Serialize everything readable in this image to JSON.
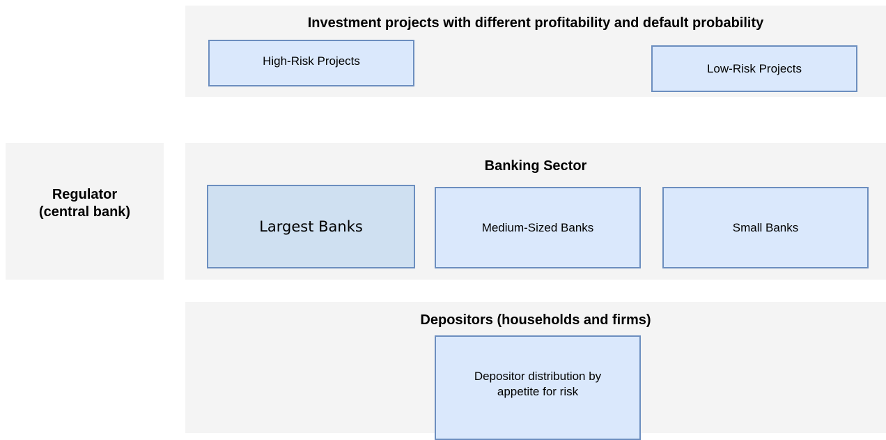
{
  "panels": [
    {
      "title": "Investment projects with different profitability and default probability",
      "boxes": [
        "High-Risk Projects",
        "Low-Risk Projects"
      ]
    },
    {
      "title": "Banking Sector",
      "boxes": [
        "Largest Banks",
        "Medium-Sized Banks",
        "Small Banks"
      ]
    },
    {
      "title": "Depositors (households and firms)",
      "boxes": [
        "Depositor distribution by appetite for risk"
      ]
    }
  ],
  "regulator": "Regulator\n(central bank)"
}
